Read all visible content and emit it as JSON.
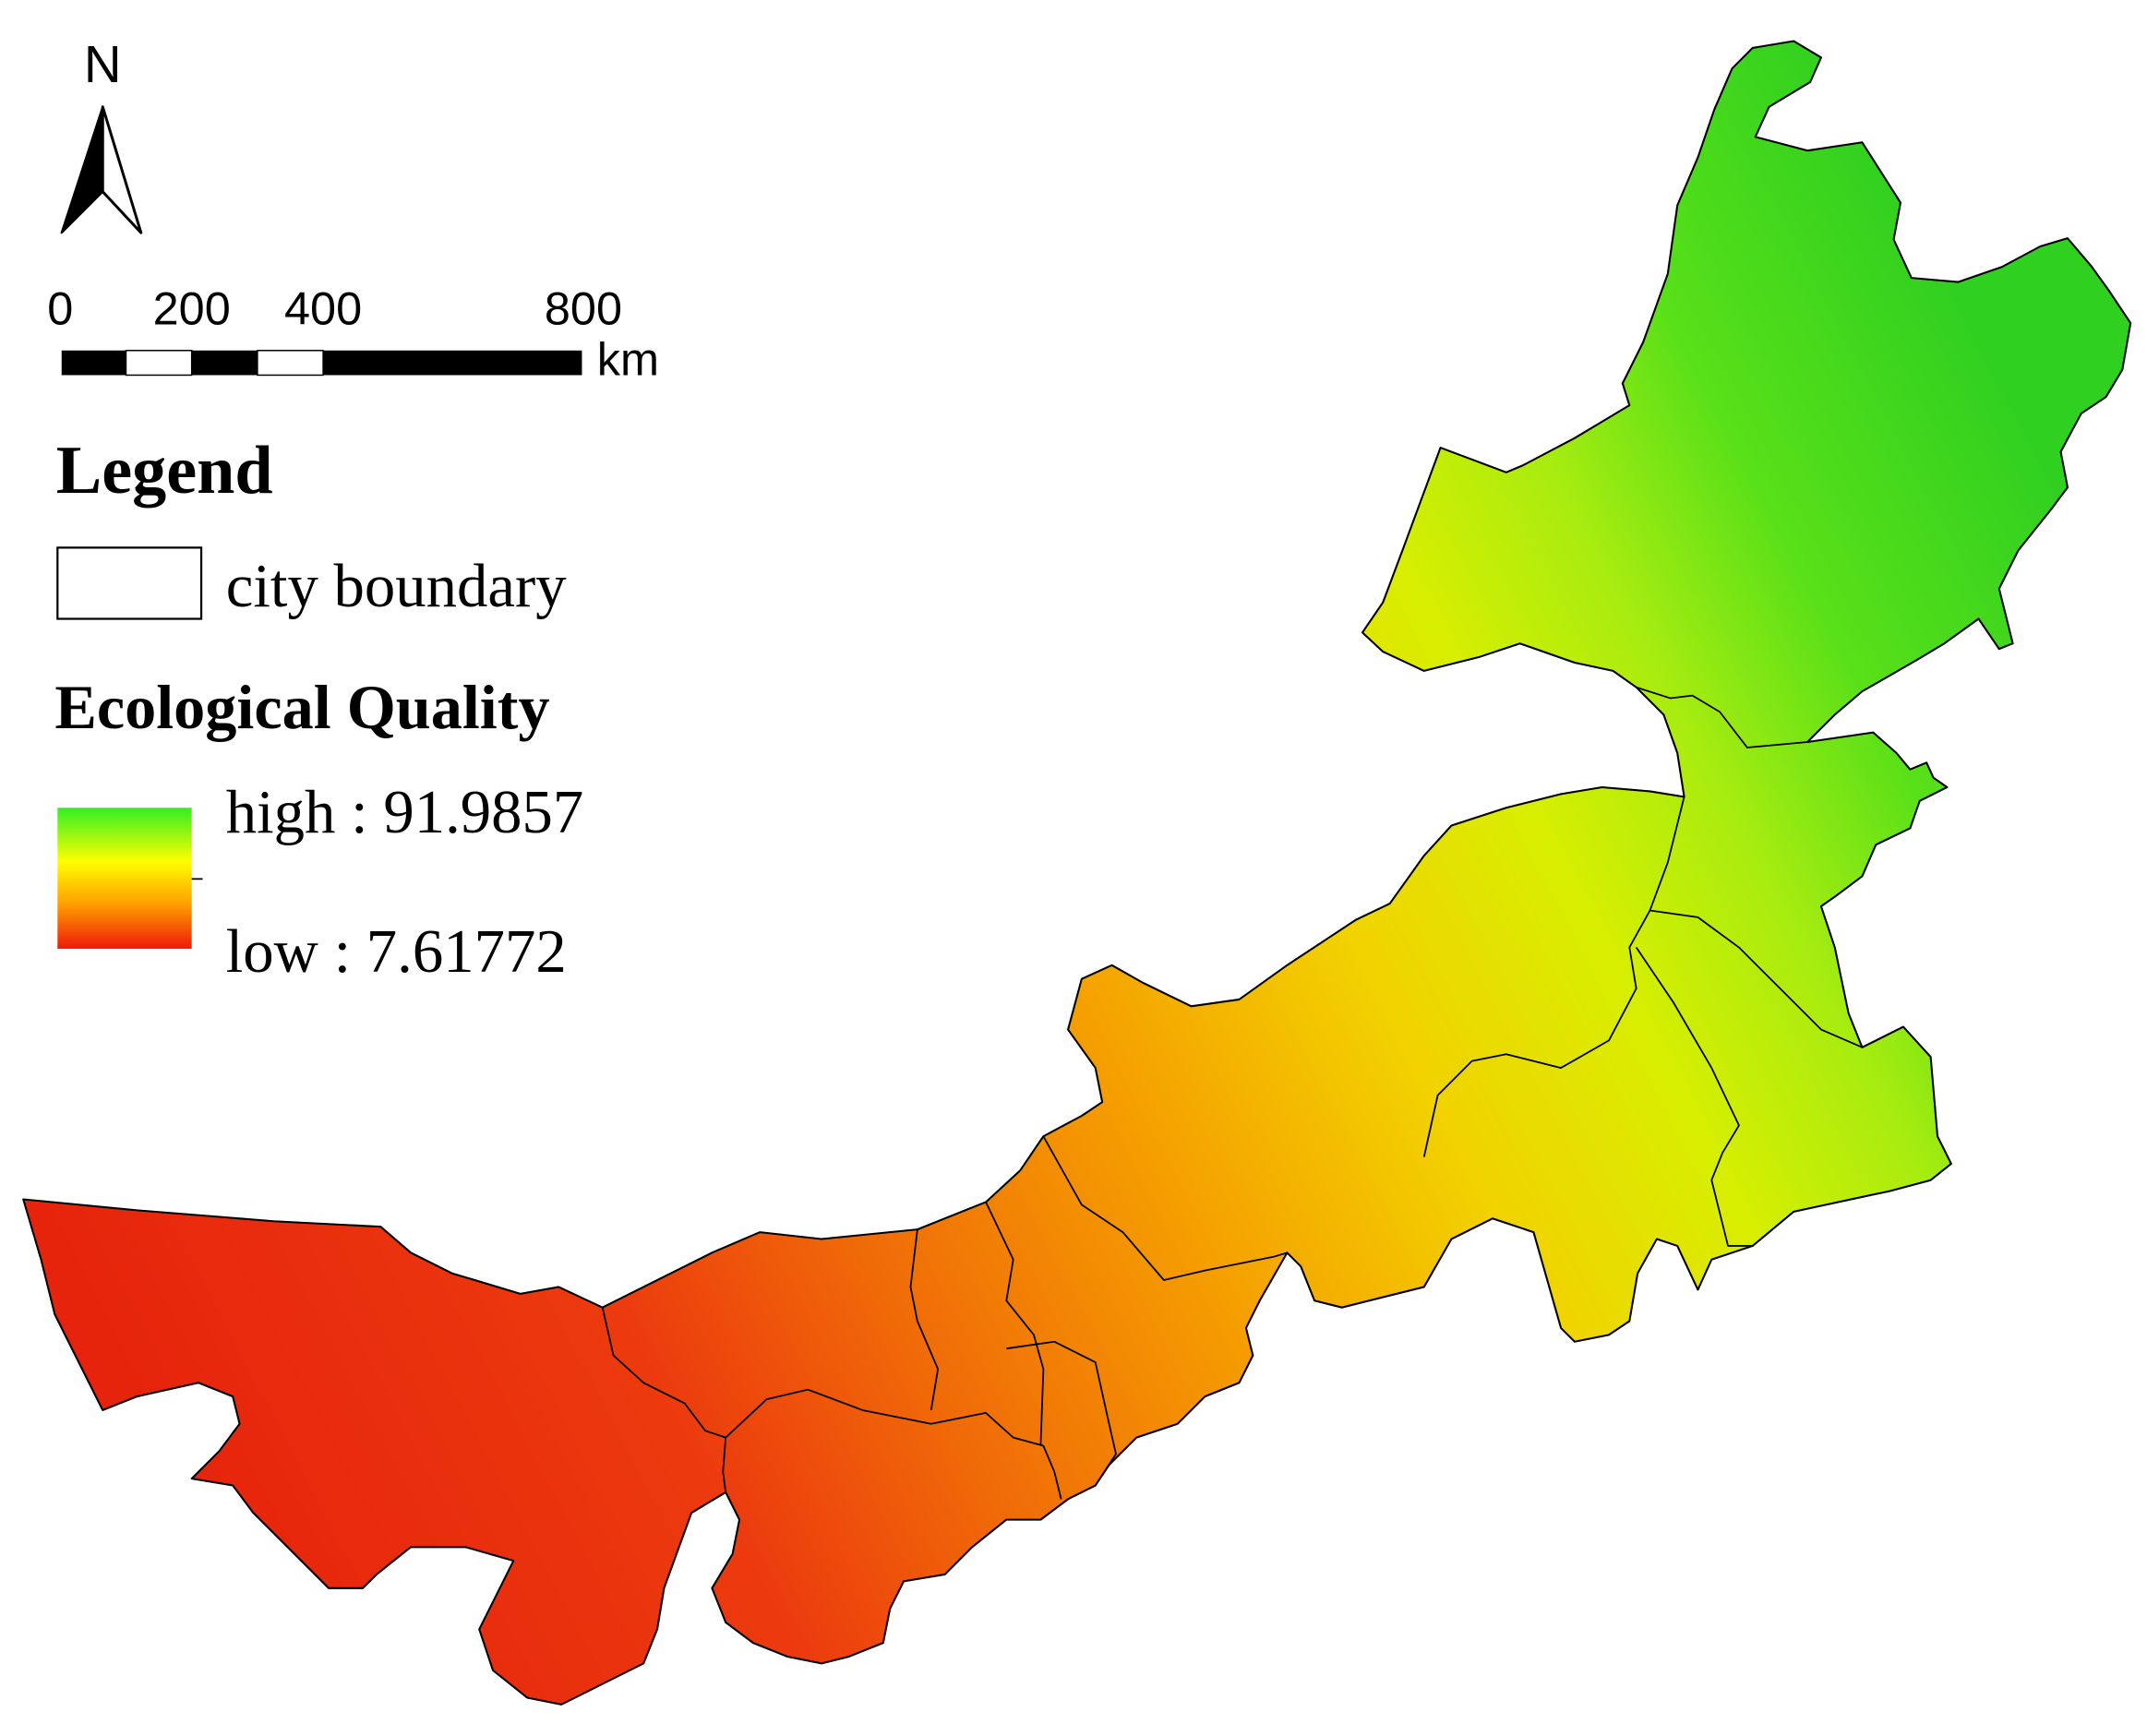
{
  "north_arrow": {
    "label": "N"
  },
  "scale_bar": {
    "ticks": [
      "0",
      "200",
      "400",
      "800"
    ],
    "unit": "km"
  },
  "legend": {
    "title": "Legend",
    "boundary_label": "city boundary",
    "ramp_title": "Ecological Quality",
    "high_label": "high : 91.9857",
    "low_label": "low : 7.61772",
    "colors": {
      "high": "#33ee22",
      "mid": "#ffff00",
      "low_mid": "#ffa000",
      "low": "#ee1a0a"
    }
  },
  "map": {
    "colors": {
      "west": "#e5200c",
      "west_mid": "#ec3a0e",
      "center_west": "#f06a08",
      "center": "#f5a000",
      "center_east": "#f2d200",
      "east": "#d8ee00",
      "north_east_mid": "#a8ec10",
      "north_east": "#58e018",
      "far_north_east": "#30d020"
    },
    "boundary_color": "#000000"
  }
}
